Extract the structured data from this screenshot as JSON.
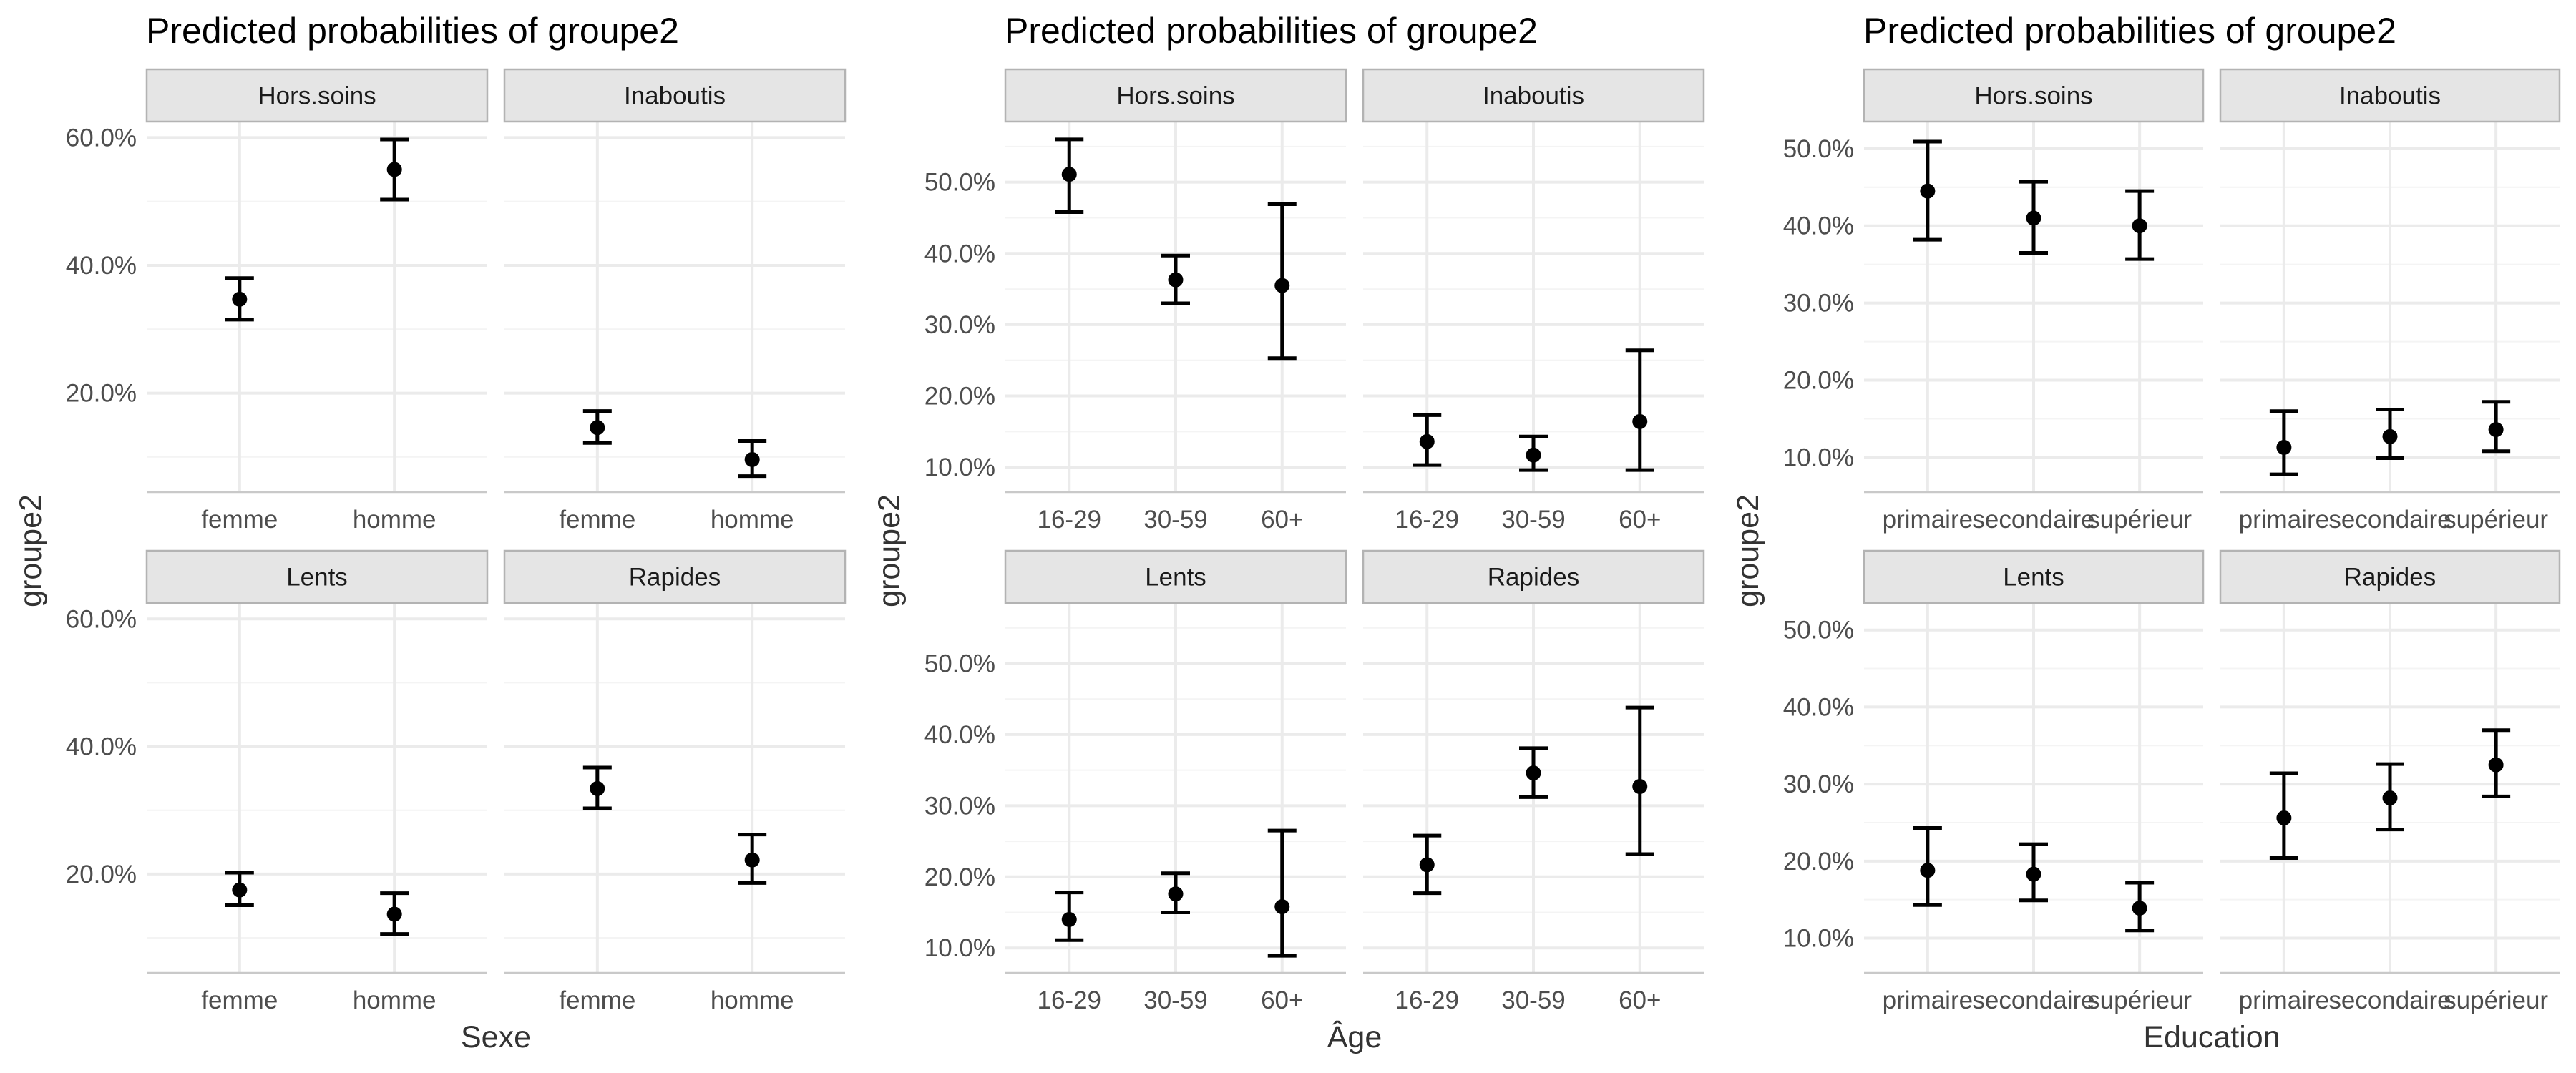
{
  "chart_data": [
    {
      "type": "scatter",
      "title": "Predicted probabilities of groupe2",
      "xlabel": "Sexe",
      "ylabel": "groupe2",
      "categories": [
        "femme",
        "homme"
      ],
      "ylim": [
        0.045,
        0.625
      ],
      "y_ticks": [
        {
          "value": 0.2,
          "label": "20.0%"
        },
        {
          "value": 0.4,
          "label": "40.0%"
        },
        {
          "value": 0.6,
          "label": "60.0%"
        }
      ],
      "grid": true,
      "legend": "none",
      "panels": [
        {
          "label": "Hors.soins",
          "points": [
            {
              "x": "femme",
              "y": 0.347,
              "ymin": 0.315,
              "ymax": 0.38
            },
            {
              "x": "homme",
              "y": 0.55,
              "ymin": 0.503,
              "ymax": 0.597
            }
          ]
        },
        {
          "label": "Inaboutis",
          "points": [
            {
              "x": "femme",
              "y": 0.146,
              "ymin": 0.122,
              "ymax": 0.172
            },
            {
              "x": "homme",
              "y": 0.096,
              "ymin": 0.07,
              "ymax": 0.125
            }
          ]
        },
        {
          "label": "Lents",
          "points": [
            {
              "x": "femme",
              "y": 0.175,
              "ymin": 0.151,
              "ymax": 0.202
            },
            {
              "x": "homme",
              "y": 0.137,
              "ymin": 0.106,
              "ymax": 0.17
            }
          ]
        },
        {
          "label": "Rapides",
          "points": [
            {
              "x": "femme",
              "y": 0.334,
              "ymin": 0.303,
              "ymax": 0.367
            },
            {
              "x": "homme",
              "y": 0.222,
              "ymin": 0.186,
              "ymax": 0.262
            }
          ]
        }
      ]
    },
    {
      "type": "scatter",
      "title": "Predicted probabilities of groupe2",
      "xlabel": "Âge",
      "ylabel": "groupe2",
      "categories": [
        "16-29",
        "30-59",
        "60+"
      ],
      "ylim": [
        0.065,
        0.585
      ],
      "y_ticks": [
        {
          "value": 0.1,
          "label": "10.0%"
        },
        {
          "value": 0.2,
          "label": "20.0%"
        },
        {
          "value": 0.3,
          "label": "30.0%"
        },
        {
          "value": 0.4,
          "label": "40.0%"
        },
        {
          "value": 0.5,
          "label": "50.0%"
        }
      ],
      "grid": true,
      "legend": "none",
      "panels": [
        {
          "label": "Hors.soins",
          "points": [
            {
              "x": "16-29",
              "y": 0.511,
              "ymin": 0.458,
              "ymax": 0.56
            },
            {
              "x": "30-59",
              "y": 0.363,
              "ymin": 0.33,
              "ymax": 0.397
            },
            {
              "x": "60+",
              "y": 0.355,
              "ymin": 0.253,
              "ymax": 0.469
            }
          ]
        },
        {
          "label": "Inaboutis",
          "points": [
            {
              "x": "16-29",
              "y": 0.136,
              "ymin": 0.103,
              "ymax": 0.173
            },
            {
              "x": "30-59",
              "y": 0.117,
              "ymin": 0.096,
              "ymax": 0.143
            },
            {
              "x": "60+",
              "y": 0.164,
              "ymin": 0.096,
              "ymax": 0.264
            }
          ]
        },
        {
          "label": "Lents",
          "points": [
            {
              "x": "16-29",
              "y": 0.14,
              "ymin": 0.111,
              "ymax": 0.178
            },
            {
              "x": "30-59",
              "y": 0.176,
              "ymin": 0.15,
              "ymax": 0.205
            },
            {
              "x": "60+",
              "y": 0.158,
              "ymin": 0.089,
              "ymax": 0.265
            }
          ]
        },
        {
          "label": "Rapides",
          "points": [
            {
              "x": "16-29",
              "y": 0.217,
              "ymin": 0.177,
              "ymax": 0.258
            },
            {
              "x": "30-59",
              "y": 0.346,
              "ymin": 0.312,
              "ymax": 0.381
            },
            {
              "x": "60+",
              "y": 0.327,
              "ymin": 0.232,
              "ymax": 0.438
            }
          ]
        }
      ]
    },
    {
      "type": "scatter",
      "title": "Predicted probabilities of groupe2",
      "xlabel": "Education",
      "ylabel": "groupe2",
      "categories": [
        "primaire",
        "secondaire",
        "supérieur"
      ],
      "ylim": [
        0.055,
        0.535
      ],
      "y_ticks": [
        {
          "value": 0.1,
          "label": "10.0%"
        },
        {
          "value": 0.2,
          "label": "20.0%"
        },
        {
          "value": 0.3,
          "label": "30.0%"
        },
        {
          "value": 0.4,
          "label": "40.0%"
        },
        {
          "value": 0.5,
          "label": "50.0%"
        }
      ],
      "grid": true,
      "legend": "none",
      "panels": [
        {
          "label": "Hors.soins",
          "points": [
            {
              "x": "primaire",
              "y": 0.445,
              "ymin": 0.382,
              "ymax": 0.509
            },
            {
              "x": "secondaire",
              "y": 0.41,
              "ymin": 0.365,
              "ymax": 0.457
            },
            {
              "x": "supérieur",
              "y": 0.4,
              "ymin": 0.357,
              "ymax": 0.445
            }
          ]
        },
        {
          "label": "Inaboutis",
          "points": [
            {
              "x": "primaire",
              "y": 0.113,
              "ymin": 0.078,
              "ymax": 0.16
            },
            {
              "x": "secondaire",
              "y": 0.127,
              "ymin": 0.099,
              "ymax": 0.162
            },
            {
              "x": "supérieur",
              "y": 0.136,
              "ymin": 0.108,
              "ymax": 0.172
            }
          ]
        },
        {
          "label": "Lents",
          "points": [
            {
              "x": "primaire",
              "y": 0.188,
              "ymin": 0.143,
              "ymax": 0.243
            },
            {
              "x": "secondaire",
              "y": 0.183,
              "ymin": 0.149,
              "ymax": 0.222
            },
            {
              "x": "supérieur",
              "y": 0.139,
              "ymin": 0.11,
              "ymax": 0.172
            }
          ]
        },
        {
          "label": "Rapides",
          "points": [
            {
              "x": "primaire",
              "y": 0.256,
              "ymin": 0.204,
              "ymax": 0.314
            },
            {
              "x": "secondaire",
              "y": 0.282,
              "ymin": 0.241,
              "ymax": 0.326
            },
            {
              "x": "supérieur",
              "y": 0.325,
              "ymin": 0.284,
              "ymax": 0.37
            }
          ]
        }
      ]
    }
  ]
}
